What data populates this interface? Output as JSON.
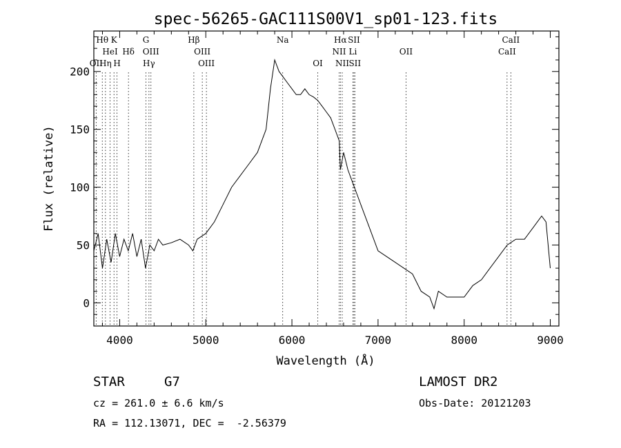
{
  "chart_data": {
    "type": "line",
    "title": "spec-56265-GAC111S00V1_sp01-123.fits",
    "xlabel": "Wavelength (Å)",
    "ylabel": "Flux (relative)",
    "xlim": [
      3700,
      9100
    ],
    "ylim": [
      -20,
      235
    ],
    "xticks": [
      4000,
      5000,
      6000,
      7000,
      8000,
      9000
    ],
    "yticks": [
      0,
      50,
      100,
      150,
      200
    ],
    "series": [
      {
        "x": [
          3700,
          3750,
          3800,
          3850,
          3900,
          3950,
          4000,
          4050,
          4100,
          4150,
          4200,
          4250,
          4300,
          4350,
          4400,
          4450,
          4500,
          4600,
          4700,
          4800,
          4850,
          4900,
          5000,
          5100,
          5200,
          5300,
          5400,
          5500,
          5600,
          5700,
          5750,
          5800,
          5850,
          5900,
          5950,
          6000,
          6050,
          6100,
          6150,
          6200,
          6250,
          6300,
          6350,
          6400,
          6450,
          6500,
          6550,
          6563,
          6600,
          6650,
          6700,
          6750,
          6800,
          6900,
          7000,
          7100,
          7200,
          7300,
          7400,
          7500,
          7600,
          7650,
          7700,
          7800,
          7900,
          8000,
          8100,
          8200,
          8300,
          8400,
          8500,
          8600,
          8700,
          8800,
          8900,
          8950,
          9000
        ],
        "y": [
          45,
          60,
          30,
          55,
          35,
          60,
          40,
          55,
          45,
          60,
          40,
          55,
          30,
          50,
          45,
          55,
          50,
          52,
          55,
          50,
          45,
          55,
          60,
          70,
          85,
          100,
          110,
          120,
          130,
          150,
          185,
          210,
          200,
          195,
          190,
          185,
          180,
          180,
          185,
          180,
          178,
          175,
          170,
          165,
          160,
          150,
          140,
          115,
          130,
          115,
          105,
          95,
          85,
          65,
          45,
          40,
          35,
          30,
          25,
          10,
          5,
          -5,
          10,
          5,
          5,
          5,
          15,
          20,
          30,
          40,
          50,
          55,
          55,
          65,
          75,
          70,
          30
        ]
      }
    ],
    "lines": [
      {
        "label": "Hθ",
        "x": 3798,
        "row": 0
      },
      {
        "label": "K",
        "x": 3934,
        "row": 0
      },
      {
        "label": "G",
        "x": 4305,
        "row": 0
      },
      {
        "label": "Hβ",
        "x": 4861,
        "row": 0
      },
      {
        "label": "Na",
        "x": 5893,
        "row": 0
      },
      {
        "label": "Hα",
        "x": 6563,
        "row": 0
      },
      {
        "label": "SII",
        "x": 6720,
        "row": 0
      },
      {
        "label": "CaII",
        "x": 8542,
        "row": 0
      },
      {
        "label": "HeI",
        "x": 3889,
        "row": 1
      },
      {
        "label": "Hδ",
        "x": 4102,
        "row": 1
      },
      {
        "label": "OIII",
        "x": 4363,
        "row": 1
      },
      {
        "label": "OIII",
        "x": 4959,
        "row": 1
      },
      {
        "label": "NII",
        "x": 6548,
        "row": 1
      },
      {
        "label": "Li",
        "x": 6708,
        "row": 1
      },
      {
        "label": "OII",
        "x": 7325,
        "row": 1
      },
      {
        "label": "CaII",
        "x": 8498,
        "row": 1
      },
      {
        "label": "OII",
        "x": 3727,
        "row": 2
      },
      {
        "label": "Hη",
        "x": 3835,
        "row": 2
      },
      {
        "label": "H",
        "x": 3969,
        "row": 2
      },
      {
        "label": "Hγ",
        "x": 4340,
        "row": 2
      },
      {
        "label": "OIII",
        "x": 5007,
        "row": 2
      },
      {
        "label": "OI",
        "x": 6300,
        "row": 2
      },
      {
        "label": "NII",
        "x": 6584,
        "row": 2
      },
      {
        "label": "SII",
        "x": 6731,
        "row": 2
      }
    ]
  },
  "info": {
    "object_type": "STAR",
    "subclass": "G7",
    "survey": "LAMOST DR2",
    "redshift": "cz = 261.0 ± 6.6 km/s",
    "obs_date": "Obs-Date: 20121203",
    "coords": "RA = 112.13071, DEC =  -2.56379"
  }
}
